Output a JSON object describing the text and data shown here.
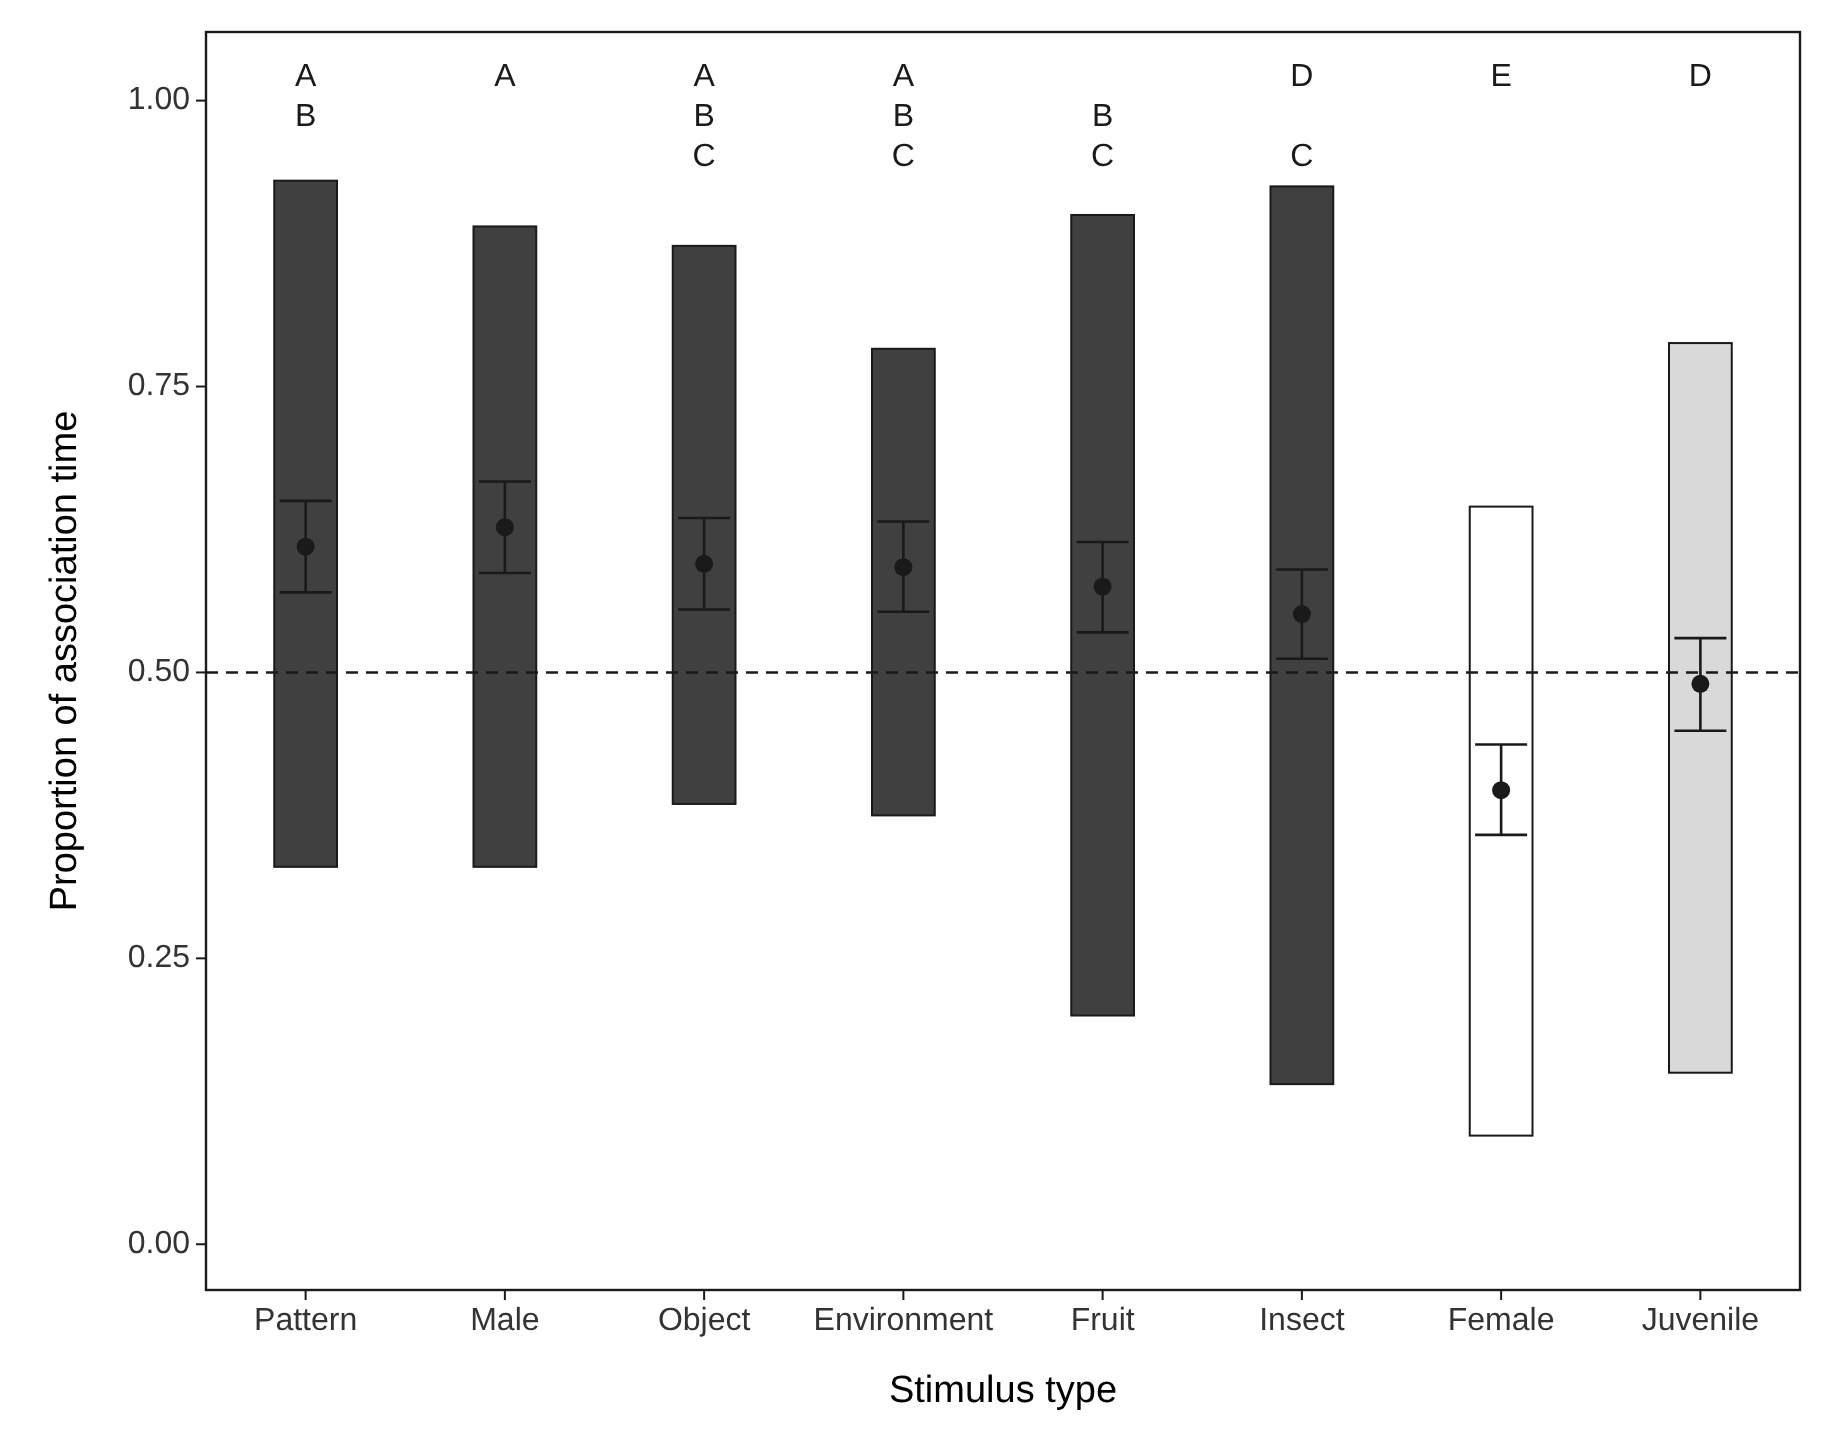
{
  "chart_data": {
    "type": "bar",
    "xlabel": "Stimulus type",
    "ylabel": "Proportion of association time",
    "categories": [
      "Pattern",
      "Male",
      "Object",
      "Environment",
      "Fruit",
      "Insect",
      "Female",
      "Juvenile"
    ],
    "ylim": [
      -0.04,
      1.06
    ],
    "yticks": [
      {
        "value": 0,
        "label": "0.00"
      },
      {
        "value": 0.25,
        "label": "0.25"
      },
      {
        "value": 0.5,
        "label": "0.50"
      },
      {
        "value": 0.75,
        "label": "0.75"
      },
      {
        "value": 1,
        "label": "1.00"
      }
    ],
    "grid": false,
    "series": [
      {
        "base": [
          0.33,
          0.33,
          0.385,
          0.375,
          0.2,
          0.14,
          0.095,
          0.15
        ],
        "values": [
          0.6,
          0.56,
          0.488,
          0.408,
          0.7,
          0.785,
          0.55,
          0.638
        ],
        "colors": [
          "#404040",
          "#404040",
          "#404040",
          "#404040",
          "#404040",
          "#404040",
          "#ffffff",
          "#d9d9d9"
        ]
      },
      {
        "type": "scatter",
        "marker": "circle",
        "color": "#1a1a1a",
        "values": [
          0.61,
          0.627,
          0.595,
          0.592,
          0.575,
          0.551,
          0.397,
          0.49
        ],
        "errors": [
          [
            0.57,
            0.65
          ],
          [
            0.587,
            0.667
          ],
          [
            0.555,
            0.635
          ],
          [
            0.553,
            0.632
          ],
          [
            0.535,
            0.614
          ],
          [
            0.512,
            0.59
          ],
          [
            0.358,
            0.437
          ],
          [
            0.449,
            0.53
          ]
        ]
      }
    ],
    "ref_lines": [
      {
        "axis": "y",
        "value": 0.5,
        "line_style": "dashed",
        "color": "#1a1a1a"
      }
    ],
    "annotations": [
      "A\nB",
      "A",
      "A\nB\nC",
      "A\nB\nC",
      "\nB\nC",
      "D\n\nC",
      "E",
      "D"
    ]
  }
}
